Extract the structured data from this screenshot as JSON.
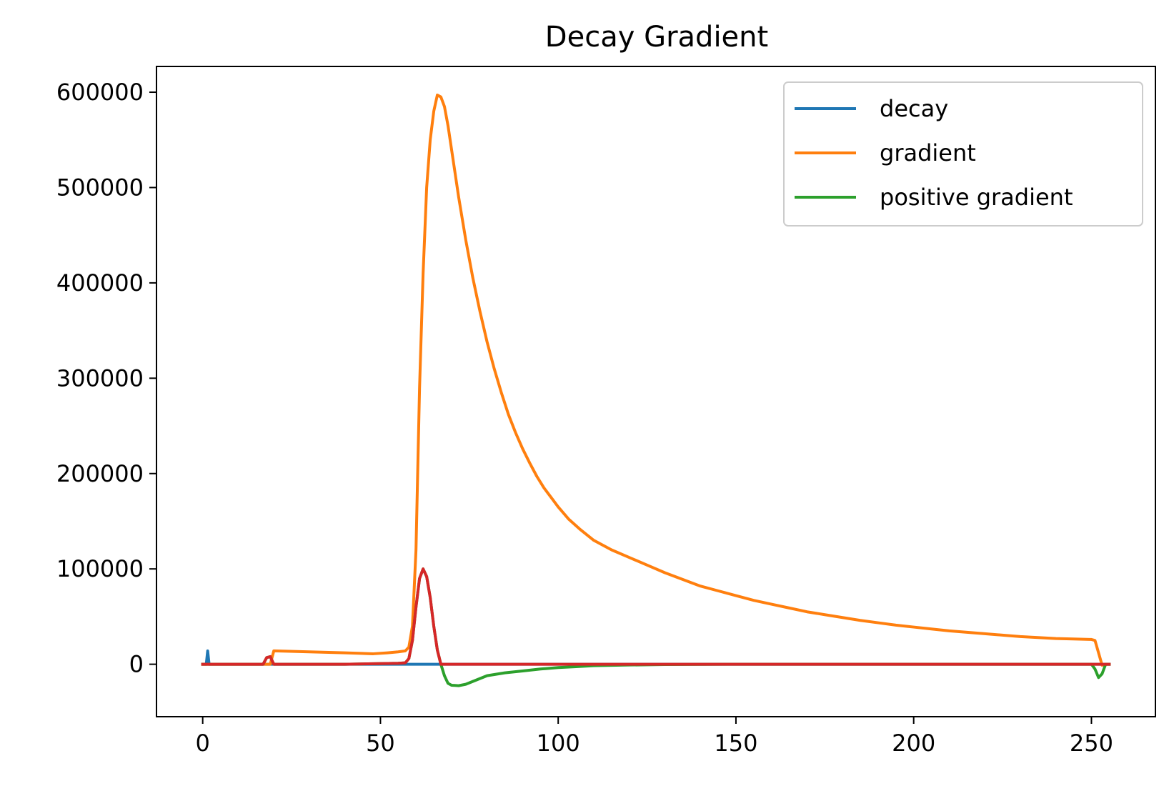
{
  "chart_data": {
    "type": "line",
    "title": "Decay Gradient",
    "xlabel": "",
    "ylabel": "",
    "xlim": [
      -13,
      268
    ],
    "ylim": [
      -55000,
      627000
    ],
    "x_ticks": [
      0,
      50,
      100,
      150,
      200,
      250
    ],
    "y_ticks": [
      0,
      100000,
      200000,
      300000,
      400000,
      500000,
      600000
    ],
    "grid": false,
    "legend_position": "top-right",
    "legend": [
      "decay",
      "gradient",
      "positive gradient"
    ],
    "series": [
      {
        "name": "decay",
        "color": "#1f77b4",
        "points": [
          [
            0,
            0
          ],
          [
            1,
            0
          ],
          [
            1.4,
            14000
          ],
          [
            1.8,
            0
          ],
          [
            2.2,
            0
          ],
          [
            18,
            0
          ],
          [
            19,
            0
          ],
          [
            255,
            0
          ]
        ]
      },
      {
        "name": "gradient",
        "color": "#ff7f0e",
        "points": [
          [
            0,
            0
          ],
          [
            18,
            0
          ],
          [
            19,
            0
          ],
          [
            20,
            14000
          ],
          [
            30,
            13000
          ],
          [
            40,
            12000
          ],
          [
            48,
            11000
          ],
          [
            52,
            12000
          ],
          [
            55,
            13000
          ],
          [
            57,
            14000
          ],
          [
            58,
            18000
          ],
          [
            59,
            40000
          ],
          [
            60,
            120000
          ],
          [
            61,
            290000
          ],
          [
            62,
            410000
          ],
          [
            63,
            500000
          ],
          [
            64,
            550000
          ],
          [
            65,
            580000
          ],
          [
            66,
            597000
          ],
          [
            67,
            595000
          ],
          [
            68,
            585000
          ],
          [
            69,
            565000
          ],
          [
            70,
            540000
          ],
          [
            72,
            490000
          ],
          [
            74,
            445000
          ],
          [
            76,
            405000
          ],
          [
            78,
            370000
          ],
          [
            80,
            338000
          ],
          [
            82,
            310000
          ],
          [
            84,
            285000
          ],
          [
            86,
            262000
          ],
          [
            88,
            243000
          ],
          [
            90,
            226000
          ],
          [
            92,
            211000
          ],
          [
            94,
            197000
          ],
          [
            96,
            185000
          ],
          [
            98,
            175000
          ],
          [
            100,
            165000
          ],
          [
            103,
            152000
          ],
          [
            106,
            142000
          ],
          [
            110,
            130000
          ],
          [
            115,
            120000
          ],
          [
            120,
            112000
          ],
          [
            125,
            104000
          ],
          [
            130,
            96000
          ],
          [
            135,
            89000
          ],
          [
            140,
            82000
          ],
          [
            145,
            77000
          ],
          [
            150,
            72000
          ],
          [
            155,
            67000
          ],
          [
            160,
            63000
          ],
          [
            165,
            59000
          ],
          [
            170,
            55000
          ],
          [
            175,
            52000
          ],
          [
            180,
            49000
          ],
          [
            185,
            46000
          ],
          [
            190,
            43500
          ],
          [
            195,
            41000
          ],
          [
            200,
            39000
          ],
          [
            205,
            37000
          ],
          [
            210,
            35000
          ],
          [
            215,
            33500
          ],
          [
            220,
            32000
          ],
          [
            225,
            30500
          ],
          [
            230,
            29000
          ],
          [
            235,
            28000
          ],
          [
            240,
            27000
          ],
          [
            245,
            26500
          ],
          [
            250,
            26000
          ],
          [
            251,
            25000
          ],
          [
            252,
            12000
          ],
          [
            253,
            -1000
          ],
          [
            254,
            0
          ],
          [
            255,
            0
          ]
        ]
      },
      {
        "name": "positive gradient",
        "color": "#2ca02c",
        "points": [
          [
            0,
            0
          ],
          [
            17,
            0
          ],
          [
            18,
            7000
          ],
          [
            19,
            8000
          ],
          [
            20,
            0
          ],
          [
            40,
            0
          ],
          [
            55,
            1000
          ],
          [
            57,
            1500
          ],
          [
            58,
            6000
          ],
          [
            59,
            25000
          ],
          [
            60,
            60000
          ],
          [
            61,
            90000
          ],
          [
            62,
            100000
          ],
          [
            63,
            92000
          ],
          [
            64,
            70000
          ],
          [
            65,
            40000
          ],
          [
            66,
            15000
          ],
          [
            67,
            0
          ],
          [
            68,
            -12000
          ],
          [
            69,
            -20000
          ],
          [
            70,
            -22000
          ],
          [
            72,
            -22500
          ],
          [
            74,
            -21000
          ],
          [
            76,
            -18000
          ],
          [
            78,
            -15000
          ],
          [
            80,
            -12000
          ],
          [
            85,
            -9000
          ],
          [
            90,
            -7000
          ],
          [
            95,
            -5000
          ],
          [
            100,
            -3500
          ],
          [
            105,
            -2500
          ],
          [
            110,
            -1500
          ],
          [
            120,
            -800
          ],
          [
            130,
            -300
          ],
          [
            150,
            0
          ],
          [
            250,
            0
          ],
          [
            251,
            -5000
          ],
          [
            252,
            -14000
          ],
          [
            253,
            -10000
          ],
          [
            254,
            0
          ],
          [
            255,
            0
          ]
        ]
      },
      {
        "name": "",
        "color": "#d62728",
        "points": [
          [
            0,
            0
          ],
          [
            17,
            0
          ],
          [
            18,
            7000
          ],
          [
            19,
            8000
          ],
          [
            20,
            0
          ],
          [
            40,
            0
          ],
          [
            55,
            1000
          ],
          [
            57,
            1500
          ],
          [
            58,
            6000
          ],
          [
            59,
            25000
          ],
          [
            60,
            60000
          ],
          [
            61,
            90000
          ],
          [
            62,
            100000
          ],
          [
            63,
            92000
          ],
          [
            64,
            70000
          ],
          [
            65,
            40000
          ],
          [
            66,
            15000
          ],
          [
            67,
            0
          ],
          [
            255,
            0
          ]
        ]
      }
    ]
  }
}
